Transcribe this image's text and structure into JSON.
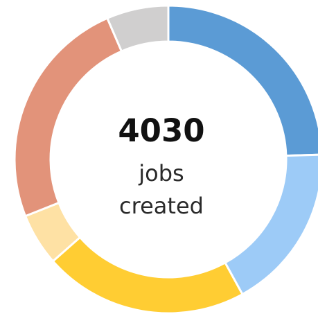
{
  "chart_data": {
    "type": "pie",
    "donut": true,
    "start_angle_deg": 0,
    "center_total": "4030",
    "center_label_lines": [
      "jobs",
      "created"
    ],
    "slices": [
      {
        "value": 0.245,
        "color": "#5b9bd5"
      },
      {
        "value": 0.175,
        "color": "#9dcbf7"
      },
      {
        "value": 0.215,
        "color": "#ffcd33"
      },
      {
        "value": 0.055,
        "color": "#fee1a4"
      },
      {
        "value": 0.245,
        "color": "#e2937a"
      },
      {
        "value": 0.065,
        "color": "#d0cfcf"
      }
    ]
  }
}
